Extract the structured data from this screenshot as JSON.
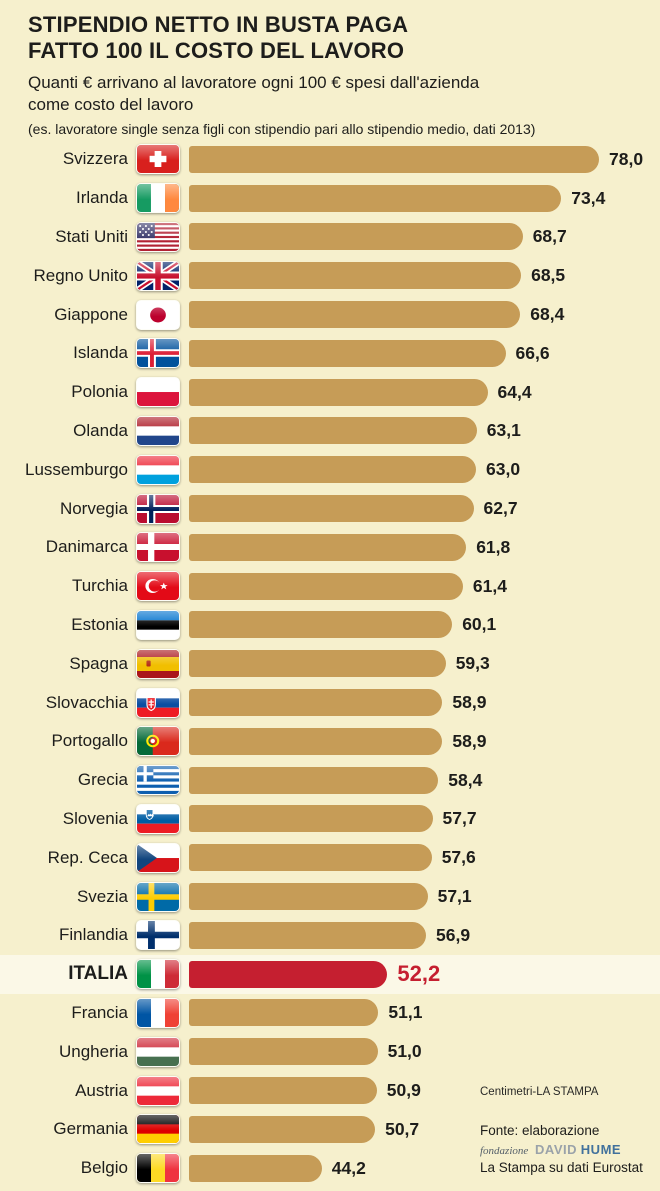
{
  "header": {
    "title_line1": "STIPENDIO NETTO IN BUSTA PAGA",
    "title_line2": "FATTO 100 IL COSTO DEL LAVORO",
    "subtitle_line1": "Quanti € arrivano al lavoratore ogni 100 € spesi dall'azienda",
    "subtitle_line2": "come costo del lavoro",
    "note": "(es. lavoratore single senza figli con stipendio pari allo stipendio medio, dati 2013)"
  },
  "chart_data": {
    "type": "bar",
    "orientation": "horizontal",
    "title": "Stipendio netto in busta paga fatto 100 il costo del lavoro",
    "categories": [
      "Svizzera",
      "Irlanda",
      "Stati Uniti",
      "Regno Unito",
      "Giappone",
      "Islanda",
      "Polonia",
      "Olanda",
      "Lussemburgo",
      "Norvegia",
      "Danimarca",
      "Turchia",
      "Estonia",
      "Spagna",
      "Slovacchia",
      "Portogallo",
      "Grecia",
      "Slovenia",
      "Rep. Ceca",
      "Svezia",
      "Finlandia",
      "ITALIA",
      "Francia",
      "Ungheria",
      "Austria",
      "Germania",
      "Belgio"
    ],
    "values": [
      78.0,
      73.4,
      68.7,
      68.5,
      68.4,
      66.6,
      64.4,
      63.1,
      63.0,
      62.7,
      61.8,
      61.4,
      60.1,
      59.3,
      58.9,
      58.9,
      58.4,
      57.7,
      57.6,
      57.1,
      56.9,
      52.2,
      51.1,
      51.0,
      50.9,
      50.7,
      44.2
    ],
    "value_labels": [
      "78,0",
      "73,4",
      "68,7",
      "68,5",
      "68,4",
      "66,6",
      "64,4",
      "63,1",
      "63,0",
      "62,7",
      "61,8",
      "61,4",
      "60,1",
      "59,3",
      "58,9",
      "58,9",
      "58,4",
      "57,7",
      "57,6",
      "57,1",
      "56,9",
      "52,2",
      "51,1",
      "51,0",
      "50,9",
      "50,7",
      "44,2"
    ],
    "flags": [
      "ch",
      "ie",
      "us",
      "gb",
      "jp",
      "is",
      "pl",
      "nl",
      "lu",
      "no",
      "dk",
      "tr",
      "ee",
      "es",
      "sk",
      "pt",
      "gr",
      "si",
      "cz",
      "se",
      "fi",
      "it",
      "fr",
      "hu",
      "at",
      "de",
      "be"
    ],
    "highlight_index": 21,
    "bar_color": "#c69c57",
    "highlight_color": "#c51f30",
    "background_color": "#f6f0cd",
    "xlim": [
      28,
      80
    ],
    "grid": false,
    "legend": false
  },
  "footer": {
    "credit": "Centimetri-LA STAMPA",
    "source_line1": "Fonte: elaborazione",
    "logo_fondazione": "fondazione",
    "logo_david": "DAVID",
    "logo_hume": "HUME",
    "source_line2": "La Stampa su dati Eurostat"
  }
}
